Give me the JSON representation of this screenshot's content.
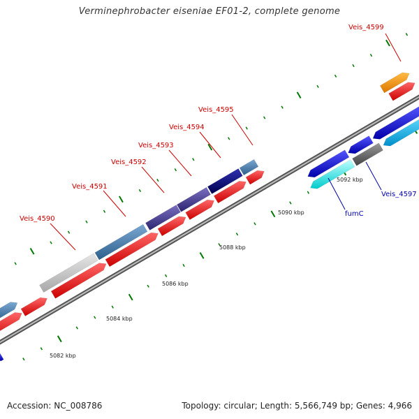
{
  "title": "Verminephrobacter eiseniae EF01-2, complete genome",
  "footer": {
    "accession": "Accession: NC_008786",
    "topology": "Topology: circular; Length: 5,566,749 bp; Genes: 4,966"
  },
  "kbp_labels": [
    "5082 kbp",
    "5084 kbp",
    "5086 kbp",
    "5088 kbp",
    "5090 kbp",
    "5092 kbp"
  ],
  "gene_labels": [
    {
      "text": "Veis_4590",
      "color": "#cc0000"
    },
    {
      "text": "Veis_4591",
      "color": "#cc0000"
    },
    {
      "text": "Veis_4592",
      "color": "#cc0000"
    },
    {
      "text": "Veis_4593",
      "color": "#cc0000"
    },
    {
      "text": "Veis_4594",
      "color": "#cc0000"
    },
    {
      "text": "Veis_4595",
      "color": "#cc0000"
    },
    {
      "text": "Veis_4599",
      "color": "#cc0000"
    },
    {
      "text": "fumC",
      "color": "#0000aa"
    },
    {
      "text": "Veis_4597",
      "color": "#0000aa"
    }
  ],
  "colors": {
    "backbone": "#888888",
    "cds_red": "#ff0000",
    "orange": "#ff9900",
    "steelblue": "#4682b4",
    "gray": "#c8c8c8",
    "darkslate": "#483d8b",
    "navy": "#000080",
    "blue": "#0000ee",
    "cyan": "#00ffff",
    "darkgray": "#696969",
    "deepskyblue": "#00bfff",
    "tick": "#007700"
  }
}
